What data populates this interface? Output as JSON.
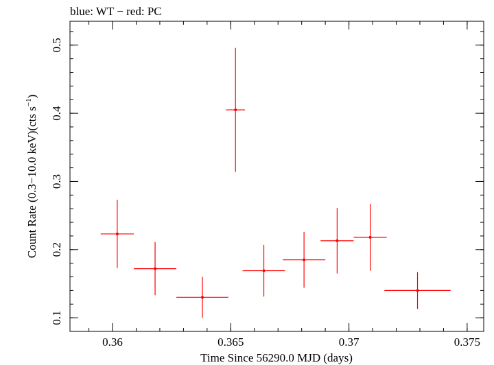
{
  "chart_data": {
    "type": "scatter",
    "title": "blue: WT − red: PC",
    "xlabel": "Time Since 56290.0 MJD (days)",
    "ylabel_main": "Count Rate (0.3−10.0 keV)(cts s",
    "ylabel_sup": "−1",
    "ylabel_close": ")",
    "xlim": [
      0.3582,
      0.3757
    ],
    "ylim": [
      0.08,
      0.535
    ],
    "x_ticks": [
      {
        "value": 0.36,
        "label": "0.36"
      },
      {
        "value": 0.365,
        "label": "0.365"
      },
      {
        "value": 0.37,
        "label": "0.37"
      },
      {
        "value": 0.375,
        "label": "0.375"
      }
    ],
    "y_ticks": [
      {
        "value": 0.1,
        "label": "0.1"
      },
      {
        "value": 0.2,
        "label": "0.2"
      },
      {
        "value": 0.3,
        "label": "0.3"
      },
      {
        "value": 0.4,
        "label": "0.4"
      },
      {
        "value": 0.5,
        "label": "0.5"
      }
    ],
    "x_minor_step": 0.001,
    "y_minor_step": 0.02,
    "series": [
      {
        "name": "PC",
        "color": "#ff0000",
        "points": [
          {
            "x": 0.3602,
            "xerr": 0.0007,
            "y": 0.223,
            "yerr": 0.05
          },
          {
            "x": 0.3618,
            "xerr": 0.0009,
            "y": 0.172,
            "yerr": 0.039
          },
          {
            "x": 0.3638,
            "xerr": 0.0011,
            "y": 0.13,
            "yerr": 0.03
          },
          {
            "x": 0.3652,
            "xerr": 0.0004,
            "y": 0.405,
            "yerr": 0.091
          },
          {
            "x": 0.3664,
            "xerr": 0.0009,
            "y": 0.169,
            "yerr": 0.038
          },
          {
            "x": 0.3681,
            "xerr": 0.0009,
            "y": 0.185,
            "yerr": 0.041
          },
          {
            "x": 0.3695,
            "xerr": 0.0007,
            "y": 0.213,
            "yerr": 0.048
          },
          {
            "x": 0.3709,
            "xerr": 0.0007,
            "y": 0.218,
            "yerr": 0.049
          },
          {
            "x": 0.3729,
            "xerr": 0.0014,
            "y": 0.14,
            "yerr": 0.027
          }
        ]
      }
    ]
  }
}
